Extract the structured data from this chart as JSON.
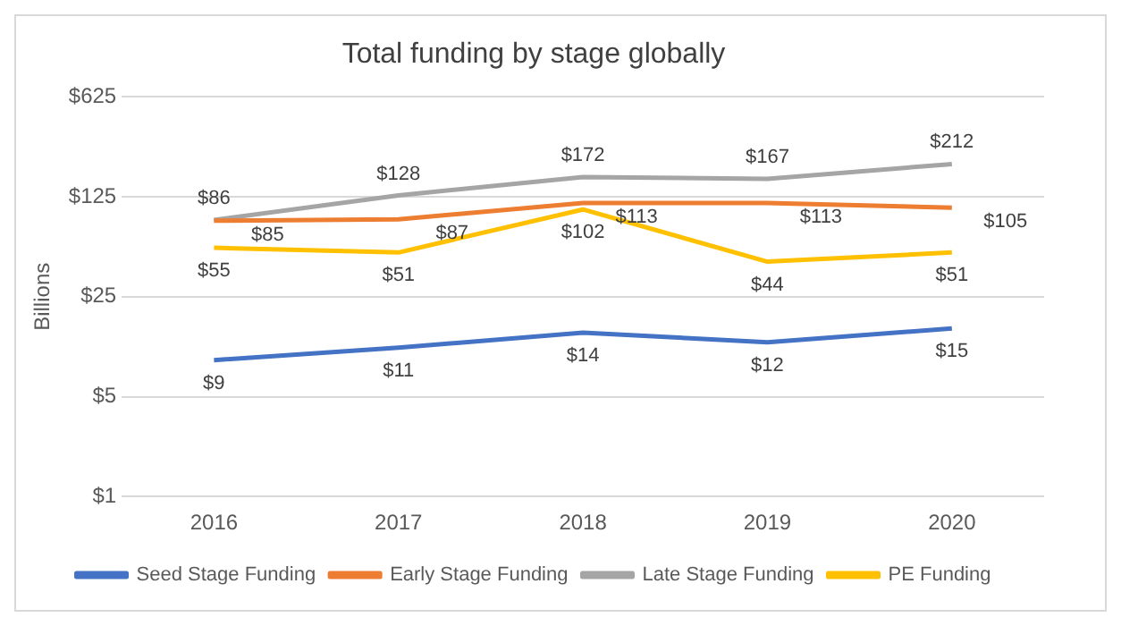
{
  "chart_data": {
    "type": "line",
    "title": "Total funding by stage globally",
    "ylabel": "Billions",
    "categories": [
      "2016",
      "2017",
      "2018",
      "2019",
      "2020"
    ],
    "series": [
      {
        "name": "Seed Stage Funding",
        "color": "#4472c4",
        "values": [
          9,
          11,
          14,
          12,
          15
        ],
        "value_labels": [
          "$9",
          "$11",
          "$14",
          "$12",
          "$15"
        ]
      },
      {
        "name": "Early Stage Funding",
        "color": "#ed7d31",
        "values": [
          85,
          87,
          113,
          113,
          105
        ],
        "value_labels": [
          "$85",
          "$87",
          "$113",
          "$113",
          "$105"
        ]
      },
      {
        "name": "Late Stage Funding",
        "color": "#a5a5a5",
        "values": [
          86,
          128,
          172,
          167,
          212
        ],
        "value_labels": [
          "$86",
          "$128",
          "$172",
          "$167",
          "$212"
        ]
      },
      {
        "name": "PE Funding",
        "color": "#ffc000",
        "values": [
          55,
          51,
          102,
          44,
          51
        ],
        "value_labels": [
          "$55",
          "$51",
          "$102",
          "$44",
          "$51"
        ]
      }
    ],
    "log": "y",
    "ylim": [
      1,
      625
    ],
    "yticks": [
      {
        "value": 1,
        "label": "$1"
      },
      {
        "value": 5,
        "label": "$5"
      },
      {
        "value": 25,
        "label": "$25"
      },
      {
        "value": 125,
        "label": "$125"
      },
      {
        "value": 625,
        "label": "$625"
      }
    ],
    "grid": "y",
    "legend": "bottom",
    "marker": "none",
    "line_style": "solid"
  }
}
